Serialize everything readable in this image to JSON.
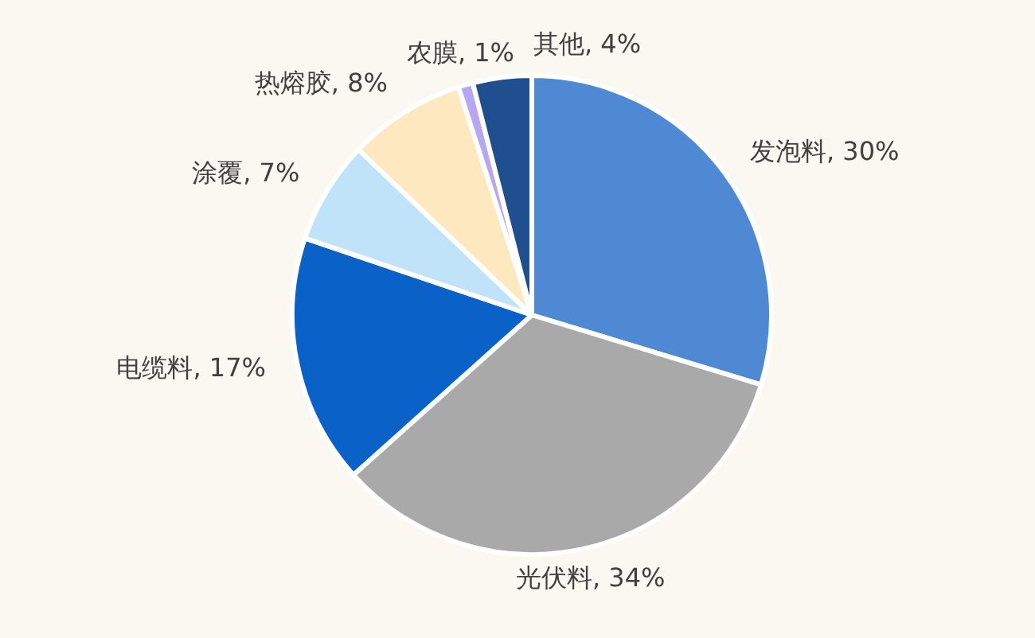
{
  "chart_data": {
    "type": "pie",
    "categories": [
      "发泡料",
      "光伏料",
      "电缆料",
      "涂覆",
      "热熔胶",
      "农膜",
      "其他"
    ],
    "values": [
      30,
      34,
      17,
      7,
      8,
      1,
      4
    ],
    "colors": [
      "#4f89d3",
      "#a9a9a9",
      "#0a62c9",
      "#c0e3fa",
      "#fde8c0",
      "#b7a6f2",
      "#1f4f8f"
    ],
    "value_labels": [
      "30%",
      "34%",
      "17%",
      "7%",
      "8%",
      "1%",
      "4%"
    ]
  }
}
